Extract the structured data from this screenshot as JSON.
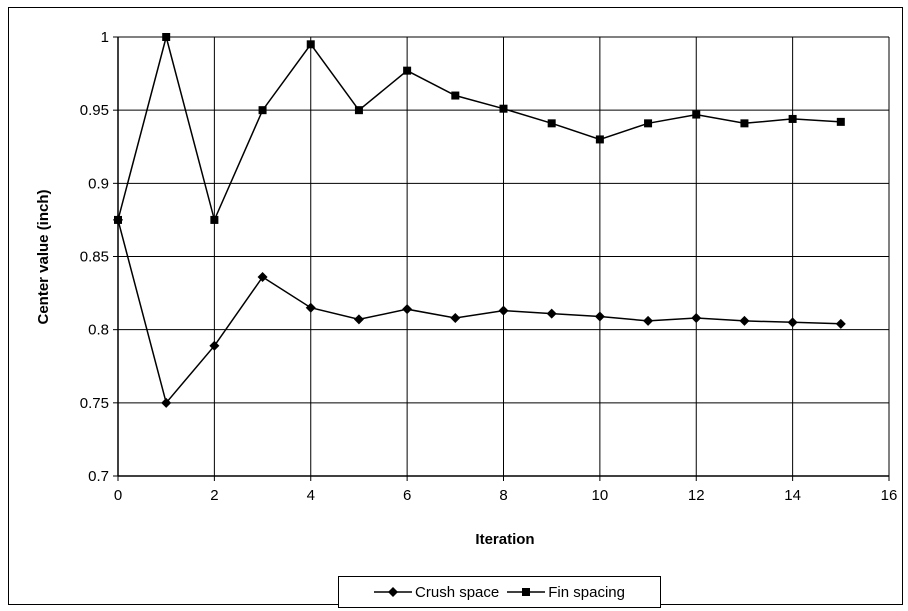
{
  "chart_data": {
    "type": "line",
    "xlabel": "Iteration",
    "ylabel": "Center value (inch)",
    "xlim": [
      0,
      16
    ],
    "ylim": [
      0.7,
      1.0
    ],
    "x_ticks": [
      "0",
      "2",
      "4",
      "6",
      "8",
      "10",
      "12",
      "14",
      "16"
    ],
    "y_ticks": [
      "0.7",
      "0.75",
      "0.8",
      "0.85",
      "0.9",
      "0.95",
      "1"
    ],
    "grid": true,
    "legend_position": "bottom",
    "series": [
      {
        "name": "Crush space",
        "marker": "diamond",
        "color": "#000000",
        "x": [
          0,
          1,
          2,
          3,
          4,
          5,
          6,
          7,
          8,
          9,
          10,
          11,
          12,
          13,
          14,
          15
        ],
        "y": [
          0.875,
          0.75,
          0.789,
          0.836,
          0.815,
          0.807,
          0.814,
          0.808,
          0.813,
          0.811,
          0.809,
          0.806,
          0.808,
          0.806,
          0.805,
          0.804
        ]
      },
      {
        "name": "Fin spacing",
        "marker": "square",
        "color": "#000000",
        "x": [
          0,
          1,
          2,
          3,
          4,
          5,
          6,
          7,
          8,
          9,
          10,
          11,
          12,
          13,
          14,
          15
        ],
        "y": [
          0.875,
          1.0,
          0.875,
          0.95,
          0.995,
          0.95,
          0.977,
          0.96,
          0.951,
          0.941,
          0.93,
          0.941,
          0.947,
          0.941,
          0.944,
          0.942
        ]
      }
    ]
  }
}
